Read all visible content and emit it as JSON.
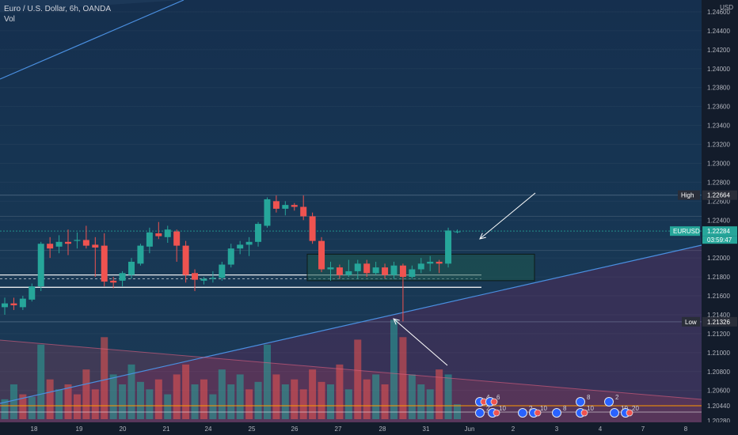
{
  "header": {
    "title": "Euro / U.S. Dollar, 6h, OANDA",
    "volume_label": "Vol"
  },
  "price_axis": {
    "currency": "USD",
    "ticks": [
      "1.24600",
      "1.24400",
      "1.24200",
      "1.24000",
      "1.23800",
      "1.23600",
      "1.23400",
      "1.23200",
      "1.23000",
      "1.22800",
      "1.22600",
      "1.22400",
      "1.22200",
      "1.22000",
      "1.21800",
      "1.21600",
      "1.21400",
      "1.21200",
      "1.21000",
      "1.20800",
      "1.20600",
      "1.20440",
      "1.20280"
    ],
    "high": {
      "label": "High",
      "value": "1.22664"
    },
    "low": {
      "label": "Low",
      "value": "1.21326"
    },
    "symbol": {
      "label": "EURUSD",
      "value": "1.22284",
      "countdown": "03:59:47"
    }
  },
  "time_axis": {
    "labels": [
      "18",
      "19",
      "20",
      "21",
      "24",
      "25",
      "26",
      "27",
      "28",
      "31",
      "Jun",
      "2",
      "3",
      "4",
      "7",
      "8"
    ]
  },
  "events": {
    "upper_row": [
      "4",
      "6",
      "8",
      "2"
    ],
    "lower_row": [
      "2",
      "10",
      "2",
      "10",
      "8",
      "10",
      "10",
      "20"
    ]
  },
  "colors": {
    "up": "#26a69a",
    "down": "#ef5350",
    "background": "#173754",
    "axis_text": "#b2b5be",
    "trendline": "#2962ff",
    "high_low_tag": "#2a2e39",
    "symbol_tag": "#26a69a",
    "horizontal_line": "#ffffff",
    "level_line": "#ff9800"
  },
  "chart_data": {
    "type": "candlestick",
    "symbol": "EURUSD",
    "timeframe": "6h",
    "ylim": [
      1.202,
      1.247
    ],
    "x_labels": [
      "18",
      "19",
      "20",
      "21",
      "24",
      "25",
      "26",
      "27",
      "28",
      "31",
      "Jun",
      "2",
      "3",
      "4",
      "7",
      "8"
    ],
    "candles": [
      {
        "o": 1.2148,
        "h": 1.2158,
        "l": 1.214,
        "c": 1.2152
      },
      {
        "o": 1.2152,
        "h": 1.2158,
        "l": 1.2145,
        "c": 1.215
      },
      {
        "o": 1.2148,
        "h": 1.216,
        "l": 1.2145,
        "c": 1.2157
      },
      {
        "o": 1.2156,
        "h": 1.2173,
        "l": 1.2154,
        "c": 1.217
      },
      {
        "o": 1.217,
        "h": 1.2217,
        "l": 1.2165,
        "c": 1.2215
      },
      {
        "o": 1.2215,
        "h": 1.2222,
        "l": 1.22,
        "c": 1.221
      },
      {
        "o": 1.2212,
        "h": 1.2224,
        "l": 1.2205,
        "c": 1.2217
      },
      {
        "o": 1.2217,
        "h": 1.223,
        "l": 1.2203,
        "c": 1.2215
      },
      {
        "o": 1.2218,
        "h": 1.2227,
        "l": 1.221,
        "c": 1.2219
      },
      {
        "o": 1.2219,
        "h": 1.2234,
        "l": 1.221,
        "c": 1.2213
      },
      {
        "o": 1.2214,
        "h": 1.2222,
        "l": 1.218,
        "c": 1.2211
      },
      {
        "o": 1.2213,
        "h": 1.2226,
        "l": 1.217,
        "c": 1.2175
      },
      {
        "o": 1.2176,
        "h": 1.218,
        "l": 1.2168,
        "c": 1.2174
      },
      {
        "o": 1.2176,
        "h": 1.2186,
        "l": 1.217,
        "c": 1.2184
      },
      {
        "o": 1.2182,
        "h": 1.22,
        "l": 1.2178,
        "c": 1.2196
      },
      {
        "o": 1.2194,
        "h": 1.2215,
        "l": 1.2192,
        "c": 1.2213
      },
      {
        "o": 1.2212,
        "h": 1.2232,
        "l": 1.2205,
        "c": 1.2227
      },
      {
        "o": 1.2226,
        "h": 1.2238,
        "l": 1.222,
        "c": 1.2223
      },
      {
        "o": 1.2222,
        "h": 1.2234,
        "l": 1.2216,
        "c": 1.223
      },
      {
        "o": 1.2228,
        "h": 1.223,
        "l": 1.2196,
        "c": 1.2213
      },
      {
        "o": 1.2213,
        "h": 1.2218,
        "l": 1.2174,
        "c": 1.2182
      },
      {
        "o": 1.2184,
        "h": 1.2188,
        "l": 1.2165,
        "c": 1.2177
      },
      {
        "o": 1.2176,
        "h": 1.218,
        "l": 1.2172,
        "c": 1.2178
      },
      {
        "o": 1.2178,
        "h": 1.2186,
        "l": 1.2174,
        "c": 1.2179
      },
      {
        "o": 1.2179,
        "h": 1.2196,
        "l": 1.2176,
        "c": 1.2193
      },
      {
        "o": 1.2193,
        "h": 1.2215,
        "l": 1.219,
        "c": 1.221
      },
      {
        "o": 1.221,
        "h": 1.2218,
        "l": 1.2204,
        "c": 1.2214
      },
      {
        "o": 1.2214,
        "h": 1.2222,
        "l": 1.2202,
        "c": 1.2217
      },
      {
        "o": 1.2217,
        "h": 1.2238,
        "l": 1.2212,
        "c": 1.2236
      },
      {
        "o": 1.2234,
        "h": 1.2264,
        "l": 1.2232,
        "c": 1.2262
      },
      {
        "o": 1.226,
        "h": 1.2266,
        "l": 1.2248,
        "c": 1.2252
      },
      {
        "o": 1.2252,
        "h": 1.226,
        "l": 1.2245,
        "c": 1.2256
      },
      {
        "o": 1.2256,
        "h": 1.2258,
        "l": 1.225,
        "c": 1.2254
      },
      {
        "o": 1.2254,
        "h": 1.2266,
        "l": 1.224,
        "c": 1.2244
      },
      {
        "o": 1.2244,
        "h": 1.2248,
        "l": 1.2215,
        "c": 1.2218
      },
      {
        "o": 1.2218,
        "h": 1.2222,
        "l": 1.2185,
        "c": 1.2188
      },
      {
        "o": 1.2188,
        "h": 1.2196,
        "l": 1.2176,
        "c": 1.219
      },
      {
        "o": 1.219,
        "h": 1.2193,
        "l": 1.2178,
        "c": 1.2182
      },
      {
        "o": 1.2182,
        "h": 1.2198,
        "l": 1.218,
        "c": 1.2186
      },
      {
        "o": 1.2186,
        "h": 1.2198,
        "l": 1.2178,
        "c": 1.2194
      },
      {
        "o": 1.2194,
        "h": 1.2198,
        "l": 1.218,
        "c": 1.2184
      },
      {
        "o": 1.2184,
        "h": 1.2196,
        "l": 1.2182,
        "c": 1.219
      },
      {
        "o": 1.219,
        "h": 1.2194,
        "l": 1.2178,
        "c": 1.2182
      },
      {
        "o": 1.2182,
        "h": 1.2196,
        "l": 1.2178,
        "c": 1.2192
      },
      {
        "o": 1.2192,
        "h": 1.2194,
        "l": 1.2133,
        "c": 1.218
      },
      {
        "o": 1.218,
        "h": 1.2192,
        "l": 1.2178,
        "c": 1.2188
      },
      {
        "o": 1.2188,
        "h": 1.22,
        "l": 1.2184,
        "c": 1.2194
      },
      {
        "o": 1.2194,
        "h": 1.2202,
        "l": 1.2186,
        "c": 1.2196
      },
      {
        "o": 1.2196,
        "h": 1.2198,
        "l": 1.2184,
        "c": 1.2194
      },
      {
        "o": 1.2194,
        "h": 1.2232,
        "l": 1.219,
        "c": 1.2229
      },
      {
        "o": 1.2228,
        "h": 1.223,
        "l": 1.2226,
        "c": 1.2228
      }
    ],
    "volume_direction": [
      "up",
      "up",
      "down",
      "up",
      "up",
      "down",
      "up",
      "down",
      "down",
      "down",
      "down",
      "down",
      "up",
      "up",
      "up",
      "up",
      "up",
      "down",
      "up",
      "down",
      "down",
      "up",
      "down",
      "up",
      "up",
      "up",
      "up",
      "down",
      "up",
      "up",
      "down",
      "up",
      "down",
      "down",
      "down",
      "down",
      "up",
      "down",
      "up",
      "down",
      "down",
      "up",
      "down",
      "up",
      "down",
      "up",
      "up",
      "up",
      "down",
      "up",
      "up"
    ],
    "volume": [
      8,
      14,
      10,
      9,
      30,
      16,
      12,
      14,
      10,
      20,
      12,
      33,
      18,
      14,
      22,
      15,
      12,
      16,
      10,
      18,
      22,
      14,
      16,
      10,
      20,
      14,
      18,
      12,
      15,
      30,
      18,
      14,
      16,
      12,
      20,
      15,
      14,
      22,
      12,
      32,
      16,
      18,
      14,
      40,
      33,
      18,
      14,
      12,
      20,
      18,
      6
    ],
    "volume_ylim": [
      0,
      42
    ],
    "annotations": {
      "high_line": 1.22664,
      "low_line": 1.21326,
      "horizontal_lines": [
        1.2182,
        1.2169
      ],
      "dashed_line": 1.2178,
      "rectangle": {
        "top": 1.2204,
        "bottom": 1.2176
      },
      "level_line": 1.20353,
      "trendlines": [
        "upper-left rising",
        "lower rising support",
        "descending volume boundary"
      ]
    }
  }
}
